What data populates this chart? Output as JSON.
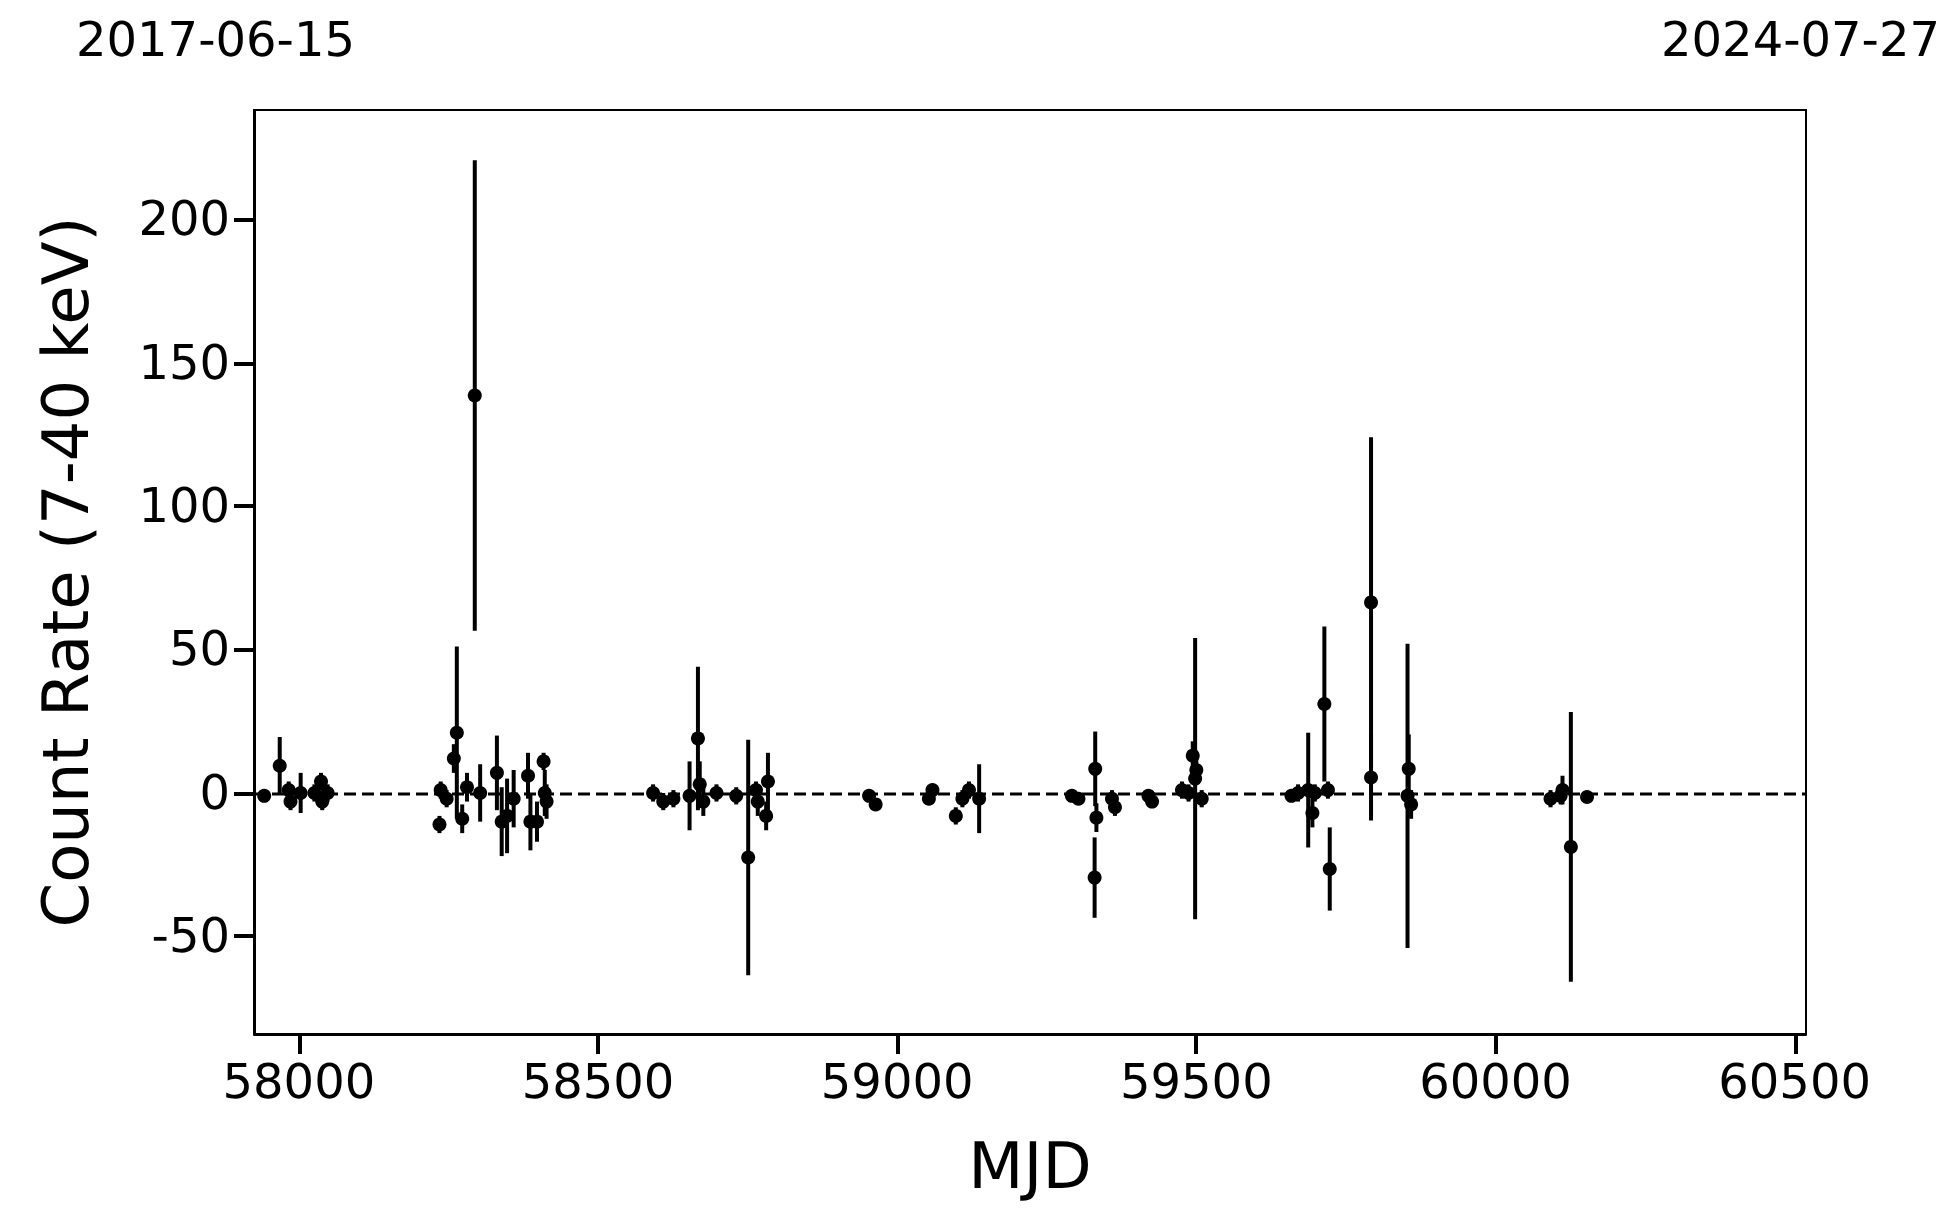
{
  "chart_data": {
    "type": "scatter",
    "xlabel": "MJD",
    "ylabel": "Count Rate (7-40 keV)",
    "annotations": [
      "2017-06-15",
      "2024-07-27"
    ],
    "xlim": [
      57925,
      60519
    ],
    "xticks": [
      58000,
      58500,
      59000,
      59500,
      60000,
      60500
    ],
    "ylim": [
      -84,
      238
    ],
    "yticks": [
      -50,
      0,
      50,
      100,
      150,
      200
    ],
    "grid": false,
    "marker": "circle",
    "ref_lines": [
      {
        "axis": "y",
        "value": 0,
        "color": "#000000",
        "line_style": "dashed"
      }
    ],
    "series": [
      {
        "color": "#000000",
        "x": [
          57942,
          57968,
          57983,
          57986,
          58003,
          58026,
          58037,
          58039,
          58048,
          58237,
          58235,
          58247,
          58259,
          58264,
          58273,
          58281,
          58294,
          58303,
          58331,
          58339,
          58348,
          58359,
          58383,
          58387,
          58398,
          58409,
          58411,
          58414,
          58592,
          58609,
          58626,
          58653,
          58667,
          58670,
          58676,
          58698,
          58731,
          58751,
          58764,
          58767,
          58781,
          58784,
          58953,
          58964,
          59053,
          59059,
          59098,
          59109,
          59120,
          59137,
          59292,
          59303,
          59331,
          59333,
          59330,
          59359,
          59364,
          59420,
          59426,
          59476,
          59487,
          59494,
          59498,
          59500,
          59509,
          59659,
          59670,
          59687,
          59694,
          59698,
          59714,
          59720,
          59723,
          59792,
          59792,
          59853,
          59855,
          59859,
          60092,
          60109,
          60112,
          60126,
          60153
        ],
        "values": [
          -1,
          9.5,
          1,
          -3,
          0,
          0,
          4,
          -3,
          0,
          1,
          -11,
          -2,
          12,
          21,
          -9,
          2,
          138.5,
          0,
          7,
          -10,
          -8,
          -2,
          6,
          -10,
          -10,
          11,
          0,
          -3,
          0,
          -3,
          -2,
          -1,
          19,
          3,
          -3,
          0,
          -1,
          -22.5,
          1,
          -3,
          -8,
          4,
          -1,
          -4,
          -2,
          1,
          -8,
          -2,
          1,
          -2,
          -1,
          -2,
          8.4,
          -8.6,
          -29.5,
          -2,
          -5,
          -1,
          -3,
          1,
          0,
          13,
          5,
          8,
          -2,
          -1,
          0,
          1,
          -7,
          0,
          31,
          1,
          -26.5,
          66.4,
          5.4,
          -1,
          8.4,
          -4,
          -2,
          -1,
          1,
          -18.8,
          -1.4
        ],
        "errors": [
          2,
          10,
          3,
          3,
          7,
          3,
          3,
          3,
          3,
          3,
          3,
          3,
          5,
          30,
          5,
          5,
          82,
          10,
          13,
          12,
          13,
          10,
          8,
          10,
          7,
          3,
          8,
          6,
          3,
          3,
          3,
          12,
          25,
          8,
          5,
          3,
          3,
          41,
          3,
          5,
          5,
          10,
          2,
          2,
          2,
          2,
          3,
          3,
          3,
          12,
          2,
          2,
          13,
          5,
          14,
          3,
          3,
          2,
          2,
          3,
          3,
          5,
          49,
          5,
          3,
          2,
          3,
          20,
          5,
          3,
          27,
          3,
          14.5,
          57.6,
          15,
          53,
          12,
          5,
          3,
          3,
          5,
          47,
          2
        ]
      }
    ]
  }
}
